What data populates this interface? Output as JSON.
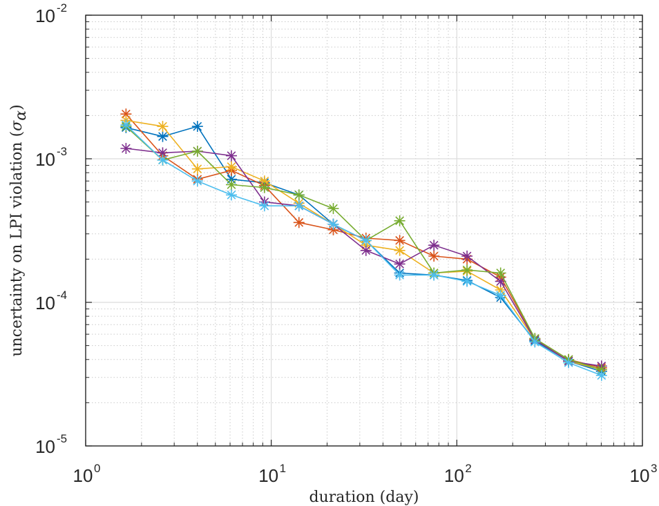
{
  "chart_data": {
    "type": "line",
    "xscale": "log",
    "yscale": "log",
    "xlim": [
      1,
      1000
    ],
    "ylim": [
      1e-05,
      0.01
    ],
    "grid": true,
    "minor_grid": true,
    "marker": "asterisk",
    "xlabel": "duration (day)",
    "ylabel_parts": {
      "main": "uncertainty on LPI violation (",
      "sigma": "σ",
      "sub": "α",
      "close": ")"
    },
    "x_ticks": [
      {
        "value": 1,
        "base": "10",
        "exp": "0"
      },
      {
        "value": 10,
        "base": "10",
        "exp": "1"
      },
      {
        "value": 100,
        "base": "10",
        "exp": "2"
      },
      {
        "value": 1000,
        "base": "10",
        "exp": "3"
      }
    ],
    "y_ticks": [
      {
        "value": 1e-05,
        "base": "10",
        "exp": "-5"
      },
      {
        "value": 0.0001,
        "base": "10",
        "exp": "-4"
      },
      {
        "value": 0.001,
        "base": "10",
        "exp": "-3"
      },
      {
        "value": 0.01,
        "base": "10",
        "exp": "-2"
      }
    ],
    "x": [
      1.65,
      2.6,
      4.0,
      6.1,
      9.2,
      14.1,
      21.6,
      32.4,
      49.2,
      75.3,
      113.5,
      172.1,
      263.3,
      400.0,
      602.0
    ],
    "series": [
      {
        "color": "#0072BD",
        "values": [
          0.00165,
          0.00143,
          0.00168,
          0.00072,
          0.00068,
          0.00056,
          0.00035,
          0.00027,
          0.00016,
          0.000155,
          0.000142,
          0.000108,
          5.4e-05,
          3.9e-05,
          3.3e-05
        ]
      },
      {
        "color": "#D95319",
        "values": [
          0.00205,
          0.00105,
          0.00072,
          0.00083,
          0.00065,
          0.00036,
          0.00032,
          0.00028,
          0.00027,
          0.00021,
          0.0002,
          0.00015,
          5.6e-05,
          4e-05,
          3.5e-05
        ]
      },
      {
        "color": "#EDB120",
        "values": [
          0.00185,
          0.00168,
          0.00085,
          0.00088,
          0.0007,
          0.00049,
          0.00035,
          0.00025,
          0.00023,
          0.00016,
          0.000165,
          0.000122,
          5.5e-05,
          3.9e-05,
          3.4e-05
        ]
      },
      {
        "color": "#7E2F8E",
        "values": [
          0.00118,
          0.0011,
          0.00113,
          0.00105,
          0.0005,
          0.00047,
          0.00035,
          0.00023,
          0.000185,
          0.00025,
          0.00021,
          0.00014,
          5.5e-05,
          3.9e-05,
          3.6e-05
        ]
      },
      {
        "color": "#77AC30",
        "values": [
          0.00168,
          0.00098,
          0.00113,
          0.00066,
          0.00063,
          0.00056,
          0.00045,
          0.00027,
          0.00037,
          0.00016,
          0.000168,
          0.00016,
          5.6e-05,
          4e-05,
          3.4e-05
        ]
      },
      {
        "color": "#4DBEEE",
        "values": [
          0.00172,
          0.00098,
          0.0007,
          0.00056,
          0.00047,
          0.00047,
          0.00035,
          0.00027,
          0.000155,
          0.000155,
          0.00014,
          0.000112,
          5.3e-05,
          3.8e-05,
          3.1e-05
        ]
      }
    ]
  }
}
